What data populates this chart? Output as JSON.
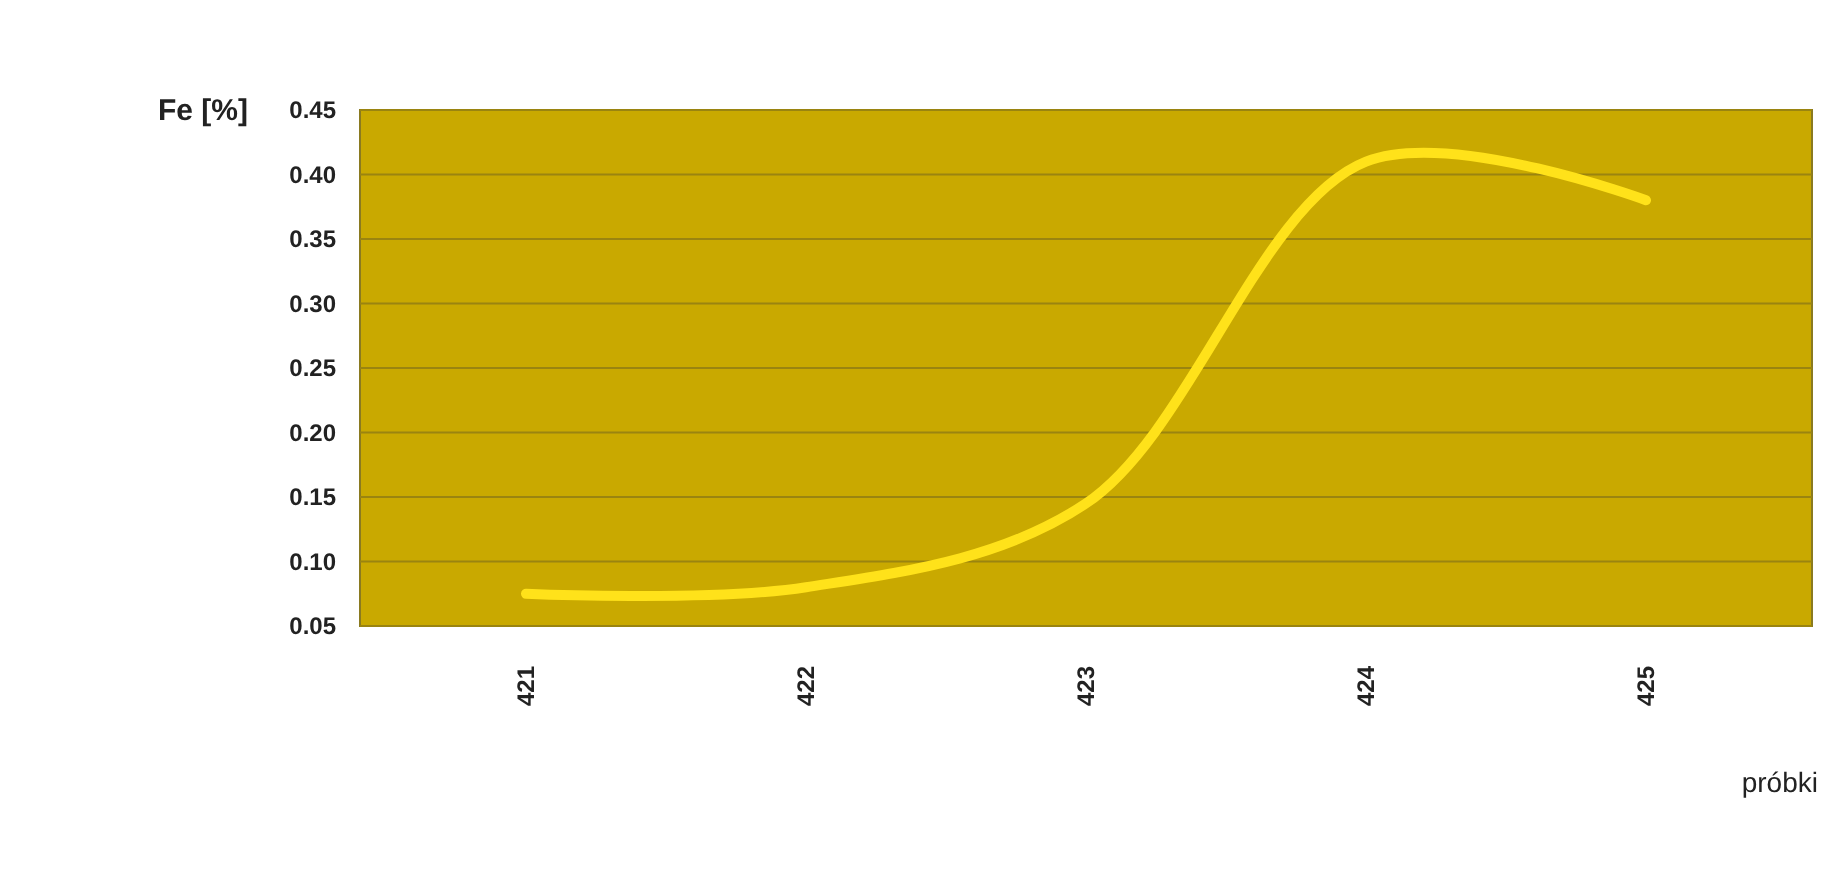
{
  "chart_data": {
    "type": "line",
    "xlabel": "próbki",
    "ylabel": "Fe [%]",
    "categories": [
      "421",
      "422",
      "423",
      "424",
      "425"
    ],
    "series": [
      {
        "color": "#ffe21a",
        "values": [
          0.075,
          0.08,
          0.145,
          0.41,
          0.38
        ]
      }
    ],
    "ylim": [
      0.05,
      0.45
    ],
    "yticks": [
      {
        "value": 0.05,
        "label": "0.05"
      },
      {
        "value": 0.1,
        "label": "0.10"
      },
      {
        "value": 0.15,
        "label": "0.15"
      },
      {
        "value": 0.2,
        "label": "0.20"
      },
      {
        "value": 0.25,
        "label": "0.25"
      },
      {
        "value": 0.3,
        "label": "0.30"
      },
      {
        "value": 0.35,
        "label": "0.35"
      },
      {
        "value": 0.4,
        "label": "0.40"
      },
      {
        "value": 0.45,
        "label": "0.45"
      }
    ],
    "grid": "y",
    "marker": "none",
    "line_style": "solid"
  }
}
